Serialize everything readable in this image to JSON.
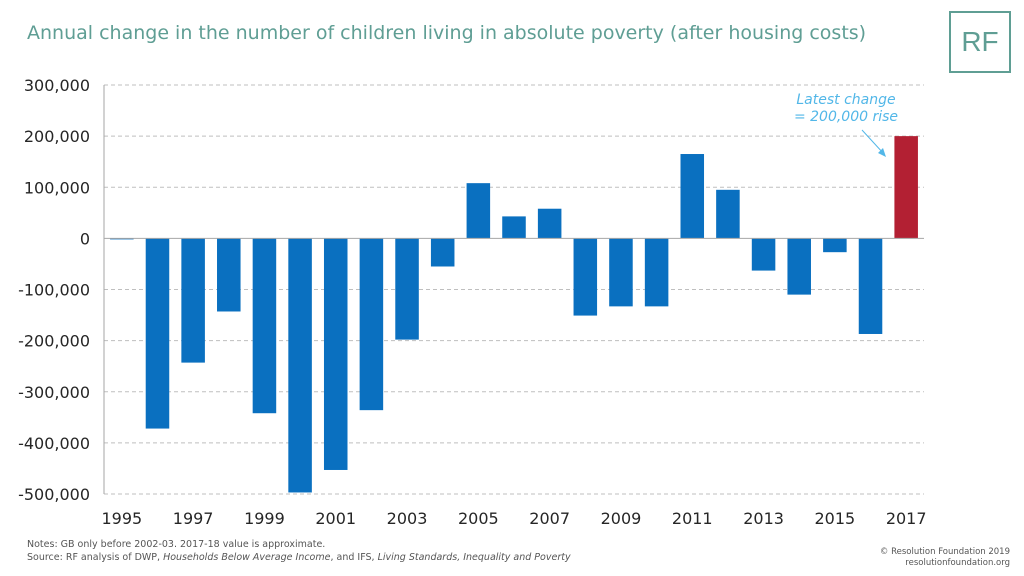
{
  "header": {
    "title": "Annual change in the number of children living in absolute poverty (after housing costs)",
    "logo_text": "RF"
  },
  "colors": {
    "bar": "#0a70c0",
    "highlight_bar": "#b32033",
    "title": "#5f9e94",
    "annotation": "#52b7e8",
    "grid": "#bfbfbf"
  },
  "chart_data": {
    "type": "bar",
    "title": "Annual change in the number of children living in absolute poverty (after housing costs)",
    "categories": [
      "1995",
      "1996",
      "1997",
      "1998",
      "1999",
      "2000",
      "2001",
      "2002",
      "2003",
      "2004",
      "2005",
      "2006",
      "2007",
      "2008",
      "2009",
      "2010",
      "2011",
      "2012",
      "2013",
      "2014",
      "2015",
      "2016",
      "2017"
    ],
    "tick_labels": [
      "1995",
      "1997",
      "1999",
      "2001",
      "2003",
      "2005",
      "2007",
      "2009",
      "2011",
      "2013",
      "2015",
      "2017"
    ],
    "values": [
      -2000,
      -372000,
      -243000,
      -143000,
      -342000,
      -497000,
      -453000,
      -336000,
      -198000,
      -55000,
      108000,
      43000,
      58000,
      -151000,
      -133000,
      -133000,
      165000,
      95000,
      -63000,
      -110000,
      -27000,
      -187000,
      200000
    ],
    "highlight_index": 22,
    "ylim": [
      -500000,
      300000
    ],
    "yticks": [
      300000,
      200000,
      100000,
      0,
      -100000,
      -200000,
      -300000,
      -400000,
      -500000
    ],
    "ytick_labels": [
      "300,000",
      "200,000",
      "100,000",
      "0",
      "-100,000",
      "-200,000",
      "-300,000",
      "-400,000",
      "-500,000"
    ],
    "grid": "horizontal dashed",
    "xlabel": "",
    "ylabel": "",
    "annotation": {
      "line1": "Latest change",
      "line2": "= 200,000 rise"
    }
  },
  "footer": {
    "notes": "Notes: GB only before 2002-03. 2017-18 value is approximate.",
    "source_prefix": "Source: RF analysis of DWP, ",
    "source_title1": "Households Below Average Income",
    "source_mid": ", and IFS, ",
    "source_title2": "Living Standards, Inequality and Poverty",
    "copyright_line1": "© Resolution Foundation 2019",
    "copyright_line2": "resolutionfoundation.org"
  }
}
